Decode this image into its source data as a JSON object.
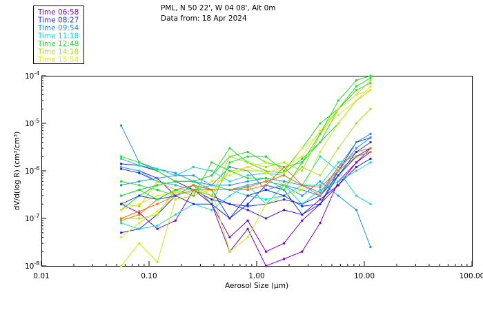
{
  "chart_data": {
    "type": "line",
    "header": {
      "line1": "PML, N 50 22', W 04 08', Alt 0m",
      "line2": "Data from: 18 Apr 2024"
    },
    "xlabel": "Aerosol Size (µm)",
    "ylabel": "dV/d(log R) (cm³/cm³)",
    "xscale": "log",
    "yscale": "log",
    "xlim": [
      0.01,
      100
    ],
    "ylim": [
      1e-08,
      0.0001
    ],
    "x_ticks": [
      {
        "value": 0.01,
        "label": "0.01"
      },
      {
        "value": 0.1,
        "label": "0.10"
      },
      {
        "value": 1,
        "label": "1.00"
      },
      {
        "value": 10,
        "label": "10.00"
      },
      {
        "value": 100,
        "label": "100.00"
      }
    ],
    "y_ticks": [
      {
        "value": 1e-08,
        "mant": "10",
        "exp": "-8"
      },
      {
        "value": 1e-07,
        "mant": "10",
        "exp": "-7"
      },
      {
        "value": 1e-06,
        "mant": "10",
        "exp": "-6"
      },
      {
        "value": 1e-05,
        "mant": "10",
        "exp": "-5"
      },
      {
        "value": 0.0001,
        "mant": "10",
        "exp": "-4"
      }
    ],
    "x": [
      0.0551,
      0.0811,
      0.1194,
      0.1759,
      0.259,
      0.3815,
      0.5618,
      0.8272,
      1.2183,
      1.794,
      2.642,
      3.8906,
      5.7292,
      8.437,
      11.424
    ],
    "legend": {
      "placement": "top-left",
      "entries": [
        {
          "label": "Time 06:58",
          "color": "#7a00c8"
        },
        {
          "label": "Time 08:27",
          "color": "#1a2fd8"
        },
        {
          "label": "Time 09:54",
          "color": "#1c8cf0"
        },
        {
          "label": "Time 11:18",
          "color": "#10d8d0"
        },
        {
          "label": "Time 12:48",
          "color": "#22dd22"
        },
        {
          "label": "Time 14:18",
          "color": "#a6e010"
        },
        {
          "label": "Time 15:54",
          "color": "#f2e020"
        }
      ]
    },
    "series": [
      {
        "color": "#7a00c8",
        "values": [
          1.2e-06,
          1e-06,
          7e-07,
          3e-07,
          5e-07,
          2e-07,
          4e-08,
          9e-08,
          2e-08,
          3e-08,
          9e-08,
          2e-07,
          5e-07,
          1.5e-06,
          2.5e-06
        ]
      },
      {
        "color": "#7a00c8",
        "values": [
          2e-07,
          1.3e-07,
          6e-08,
          9e-08,
          4e-07,
          2e-07,
          2e-08,
          6e-08,
          1e-08,
          1.4e-08,
          2e-08,
          8e-08,
          6e-07,
          1.5e-06,
          3e-06
        ]
      },
      {
        "color": "#3c10d0",
        "values": [
          1.4e-06,
          1.3e-06,
          1e-06,
          6e-07,
          4e-07,
          2.5e-07,
          2e-07,
          1.5e-07,
          1e-07,
          1.5e-07,
          1.2e-07,
          2.5e-07,
          5e-07,
          1.2e-06,
          1.8e-06
        ]
      },
      {
        "color": "#1a2fd8",
        "values": [
          1.1e-06,
          9e-07,
          6e-07,
          5e-07,
          4e-07,
          3e-07,
          2e-07,
          1.8e-07,
          2e-07,
          2.5e-07,
          2e-07,
          3e-07,
          8e-07,
          2e-06,
          3e-06
        ]
      },
      {
        "color": "#1a2fd8",
        "values": [
          5e-08,
          6e-08,
          1.2e-07,
          3e-07,
          5e-07,
          4e-07,
          1e-07,
          2e-07,
          5e-07,
          4e-07,
          1.2e-07,
          2e-07,
          1e-06,
          4e-06,
          5e-06
        ]
      },
      {
        "color": "#1c8cf0",
        "values": [
          9e-06,
          1.5e-06,
          1.1e-06,
          9e-07,
          6e-07,
          5e-07,
          1.2e-06,
          1e-06,
          4e-07,
          5e-07,
          3e-07,
          6e-07,
          3e-07,
          1.5e-07,
          2.5e-08
        ]
      },
      {
        "color": "#1c8cf0",
        "values": [
          3e-07,
          4e-07,
          5e-07,
          6e-07,
          6e-07,
          4e-07,
          4e-07,
          5e-07,
          6e-07,
          5e-07,
          4e-07,
          3e-07,
          1e-06,
          3e-06,
          5e-06
        ]
      },
      {
        "color": "#1c8cf0",
        "values": [
          5e-07,
          6e-07,
          7e-07,
          8e-07,
          8e-07,
          5e-07,
          5e-07,
          6e-07,
          7e-07,
          6e-07,
          5e-07,
          3.5e-07,
          1.2e-06,
          4e-06,
          6e-06
        ]
      },
      {
        "color": "#10d8d0",
        "values": [
          1.8e-06,
          1.3e-06,
          1.1e-06,
          8e-07,
          1.2e-06,
          1e-06,
          6e-07,
          8e-07,
          9e-07,
          8e-07,
          5e-07,
          5e-07,
          1.5e-06,
          2e-06,
          2.5e-06
        ]
      },
      {
        "color": "#10d8d0",
        "values": [
          8e-08,
          6e-08,
          7e-08,
          1.2e-07,
          2e-07,
          1.5e-07,
          3e-07,
          5e-07,
          2e-07,
          5e-07,
          2e-07,
          4e-07,
          6e-07,
          1e-06,
          1.5e-06
        ]
      },
      {
        "color": "#10d8d0",
        "values": [
          1.2e-06,
          1e-06,
          6e-07,
          5e-07,
          4e-07,
          5e-07,
          4e-07,
          3e-07,
          2.5e-07,
          3e-07,
          5e-07,
          2e-06,
          1e-06,
          3e-07,
          2e-07
        ]
      },
      {
        "color": "#22dd22",
        "values": [
          2e-06,
          1.5e-06,
          1e-06,
          6e-07,
          6e-07,
          8e-07,
          2e-06,
          2.5e-06,
          1.5e-06,
          1.2e-06,
          1.5e-06,
          4e-06,
          2e-05,
          6e-05,
          9e-05
        ]
      },
      {
        "color": "#22dd22",
        "values": [
          1.5e-07,
          3e-07,
          5e-07,
          6e-07,
          6e-07,
          8e-07,
          3e-06,
          1.5e-06,
          1e-06,
          9e-07,
          1.8e-06,
          4e-06,
          1e-05,
          3e-05,
          5e-05
        ]
      },
      {
        "color": "#22dd22",
        "values": [
          6e-07,
          5e-07,
          4e-07,
          3e-07,
          5e-07,
          2e-07,
          1.5e-06,
          2e-06,
          2e-06,
          1e-06,
          3e-06,
          1e-05,
          2e-05,
          5e-05,
          7e-05
        ]
      },
      {
        "color": "#a6e010",
        "values": [
          2e-07,
          1.8e-07,
          6e-07,
          4e-07,
          4e-07,
          3e-07,
          2e-06,
          1.5e-06,
          1.2e-06,
          1.5e-06,
          1e-06,
          6e-06,
          2e-05,
          4e-05,
          8e-05
        ]
      },
      {
        "color": "#a6e010",
        "values": [
          1e-07,
          1e-07,
          1.2e-07,
          4e-07,
          5e-07,
          3e-07,
          1e-06,
          1e-06,
          1e-06,
          5e-07,
          1.2e-06,
          8e-07,
          3e-06,
          1e-05,
          2e-05
        ]
      },
      {
        "color": "#c8e810",
        "values": [
          1e-08,
          3e-08,
          1.2e-08,
          2.5e-07,
          3e-07,
          4e-07,
          2e-08,
          4e-08,
          2e-07,
          3e-07,
          4e-07,
          2.5e-06,
          1e-05,
          3e-05,
          5e-05
        ]
      },
      {
        "color": "#f2e020",
        "values": [
          4e-08,
          8e-08,
          1.4e-07,
          3e-07,
          4e-07,
          6e-07,
          8e-07,
          1.2e-06,
          9e-07,
          1.2e-06,
          2e-06,
          7e-06,
          2e-05,
          4e-05,
          5e-05
        ]
      },
      {
        "color": "#f2e020",
        "values": [
          1.5e-07,
          2e-07,
          3e-07,
          3.5e-07,
          3.5e-07,
          4e-07,
          1e-06,
          1.2e-06,
          1.5e-06,
          9e-07,
          3e-06,
          6e-06,
          1.5e-05,
          3e-05,
          6e-05
        ]
      },
      {
        "color": "#f07010",
        "values": [
          1e-07,
          1.4e-07,
          2e-07,
          3e-07,
          4e-07,
          4e-07,
          4e-07,
          4.5e-07,
          6e-07,
          8e-07,
          5e-07,
          4.5e-07,
          1e-06,
          2e-06,
          2.5e-06
        ]
      },
      {
        "color": "#f07010",
        "values": [
          9e-08,
          1.2e-07,
          2.5e-07,
          4e-07,
          5e-07,
          4e-07,
          4e-07,
          4e-07,
          5e-07,
          1.2e-06,
          5e-07,
          3e-07,
          1.2e-06,
          2.5e-06,
          3e-06
        ]
      },
      {
        "color": "#1a2fd8",
        "values": [
          2e-07,
          3e-07,
          2.5e-07,
          3e-07,
          2e-07,
          2e-07,
          1e-07,
          3e-07,
          4e-07,
          3e-07,
          1.8e-07,
          2e-07,
          8e-07,
          2.5e-06,
          4e-06
        ]
      },
      {
        "color": "#22dd22",
        "values": [
          3e-07,
          4e-07,
          2.5e-07,
          4e-07,
          3e-07,
          1.5e-06,
          1e-06,
          7e-07,
          7e-07,
          4e-07,
          1.5e-06,
          6e-06,
          3e-05,
          8e-05,
          0.0001
        ]
      }
    ]
  }
}
